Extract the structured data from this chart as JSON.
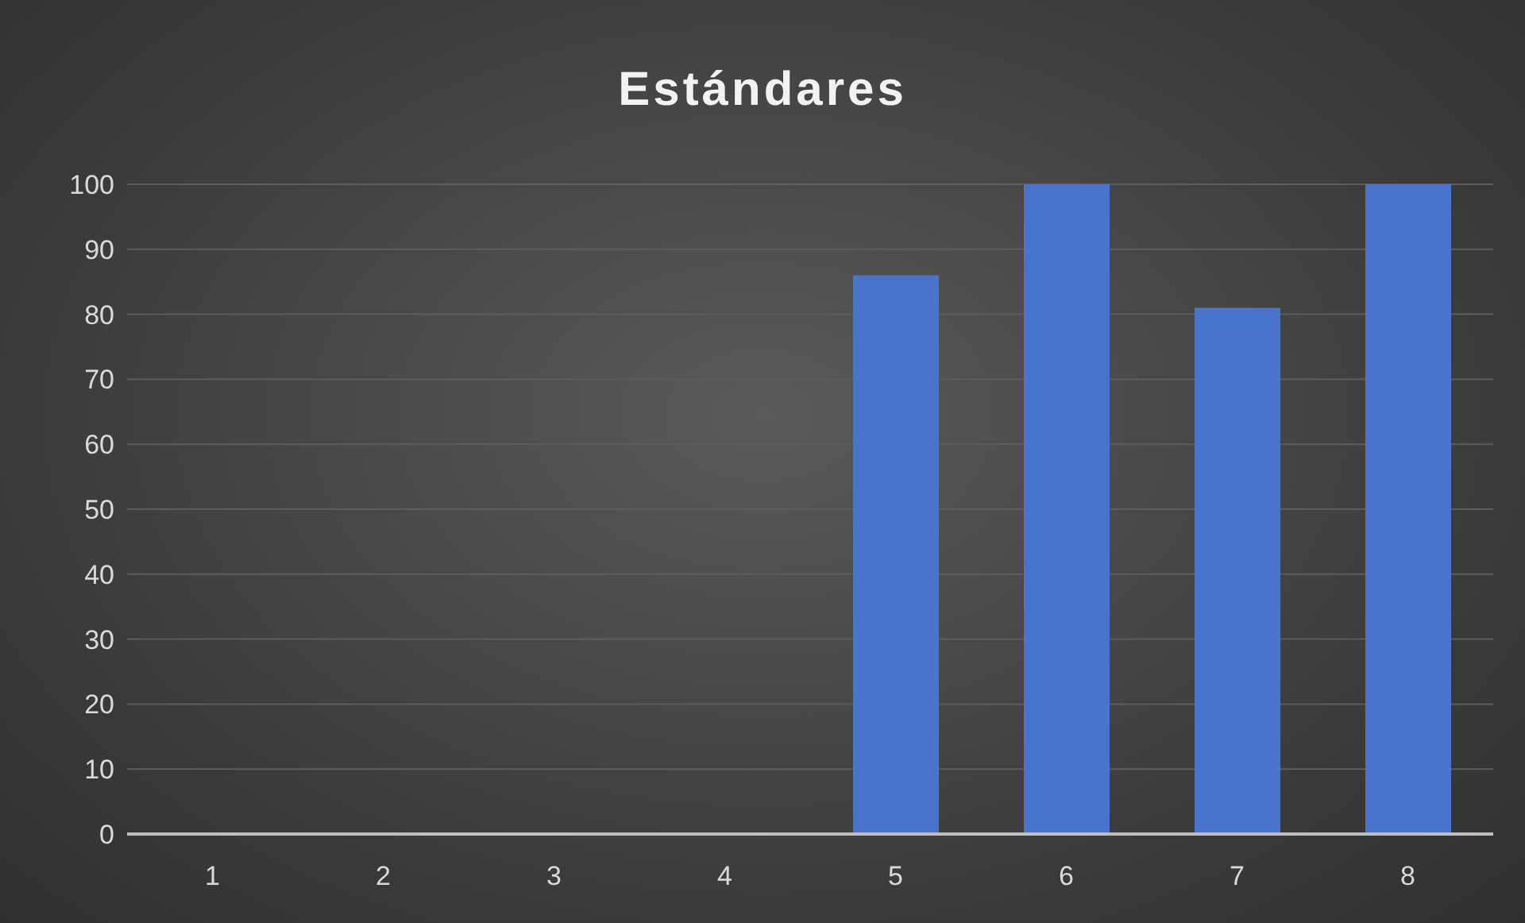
{
  "chart_data": {
    "type": "bar",
    "title": "Estándares",
    "categories": [
      "1",
      "2",
      "3",
      "4",
      "5",
      "6",
      "7",
      "8"
    ],
    "values": [
      0,
      0,
      0,
      0,
      86,
      100,
      81,
      100
    ],
    "color": "#4874cb",
    "ylim": [
      0,
      100
    ],
    "yticks": [
      0,
      10,
      20,
      30,
      40,
      50,
      60,
      70,
      80,
      90,
      100
    ],
    "grid": "y"
  }
}
